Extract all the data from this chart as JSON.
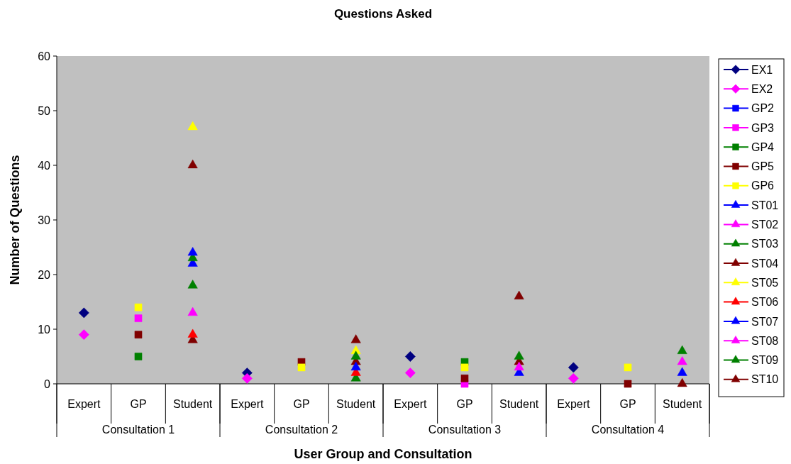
{
  "chart_data": {
    "type": "scatter",
    "title": "Questions Asked",
    "xlabel": "User Group and Consultation",
    "ylabel": "Number of Questions",
    "categories": [
      "Expert",
      "GP",
      "Student",
      "Expert",
      "GP",
      "Student",
      "Expert",
      "GP",
      "Student",
      "Expert",
      "GP",
      "Student"
    ],
    "annotations": [
      "Consultation 1",
      "Consultation 2",
      "Consultation 3",
      "Consultation 4"
    ],
    "ylim": [
      0,
      60
    ],
    "yticks": [
      0,
      10,
      20,
      30,
      40,
      50,
      60
    ],
    "grid": false,
    "legend": "right",
    "series": [
      {
        "name": "EX1",
        "color": "#000080",
        "marker": "diamond",
        "values": [
          13,
          null,
          null,
          2,
          null,
          null,
          5,
          null,
          null,
          3,
          null,
          null
        ]
      },
      {
        "name": "EX2",
        "color": "#ff00ff",
        "marker": "diamond",
        "values": [
          9,
          null,
          null,
          1,
          null,
          null,
          2,
          null,
          null,
          1,
          null,
          null
        ]
      },
      {
        "name": "GP2",
        "color": "#0000ff",
        "marker": "square",
        "values": [
          null,
          null,
          null,
          null,
          null,
          null,
          null,
          null,
          null,
          null,
          null,
          null
        ]
      },
      {
        "name": "GP3",
        "color": "#ff00ff",
        "marker": "square",
        "values": [
          null,
          12,
          null,
          null,
          null,
          null,
          null,
          0,
          null,
          null,
          null,
          null
        ]
      },
      {
        "name": "GP4",
        "color": "#008000",
        "marker": "square",
        "values": [
          null,
          5,
          null,
          null,
          null,
          null,
          null,
          4,
          null,
          null,
          null,
          null
        ]
      },
      {
        "name": "GP5",
        "color": "#800000",
        "marker": "square",
        "values": [
          null,
          9,
          null,
          null,
          4,
          null,
          null,
          1,
          null,
          null,
          0,
          null
        ]
      },
      {
        "name": "GP6",
        "color": "#ffff00",
        "marker": "square",
        "values": [
          null,
          14,
          null,
          null,
          3,
          null,
          null,
          3,
          null,
          null,
          3,
          null
        ]
      },
      {
        "name": "ST01",
        "color": "#0000ff",
        "marker": "triangle",
        "values": [
          null,
          null,
          22,
          null,
          null,
          null,
          null,
          null,
          null,
          null,
          null,
          null
        ]
      },
      {
        "name": "ST02",
        "color": "#ff00ff",
        "marker": "triangle",
        "values": [
          null,
          null,
          13,
          null,
          null,
          null,
          null,
          null,
          null,
          null,
          null,
          null
        ]
      },
      {
        "name": "ST03",
        "color": "#008000",
        "marker": "triangle",
        "values": [
          null,
          null,
          23,
          null,
          null,
          1,
          null,
          null,
          null,
          null,
          null,
          null
        ]
      },
      {
        "name": "ST04",
        "color": "#800000",
        "marker": "triangle",
        "values": [
          null,
          null,
          8,
          null,
          null,
          4,
          null,
          null,
          4,
          null,
          null,
          0
        ]
      },
      {
        "name": "ST05",
        "color": "#ffff00",
        "marker": "triangle",
        "values": [
          null,
          null,
          47,
          null,
          null,
          6,
          null,
          null,
          null,
          null,
          null,
          null
        ]
      },
      {
        "name": "ST06",
        "color": "#ff0000",
        "marker": "triangle",
        "values": [
          null,
          null,
          9,
          null,
          null,
          2,
          null,
          null,
          null,
          null,
          null,
          null
        ]
      },
      {
        "name": "ST07",
        "color": "#0000ff",
        "marker": "triangle",
        "values": [
          null,
          null,
          24,
          null,
          null,
          3,
          null,
          null,
          2,
          null,
          null,
          2
        ]
      },
      {
        "name": "ST08",
        "color": "#ff00ff",
        "marker": "triangle",
        "values": [
          null,
          null,
          null,
          null,
          null,
          null,
          null,
          null,
          3,
          null,
          null,
          4
        ]
      },
      {
        "name": "ST09",
        "color": "#008000",
        "marker": "triangle",
        "values": [
          null,
          null,
          18,
          null,
          null,
          5,
          null,
          null,
          5,
          null,
          null,
          6
        ]
      },
      {
        "name": "ST10",
        "color": "#800000",
        "marker": "triangle",
        "values": [
          null,
          null,
          40,
          null,
          null,
          8,
          null,
          null,
          16,
          null,
          null,
          null
        ]
      }
    ]
  }
}
